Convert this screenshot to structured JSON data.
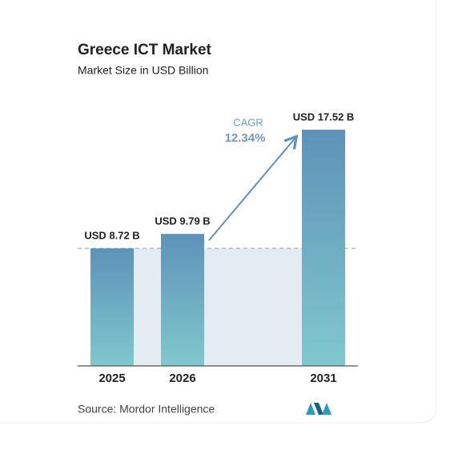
{
  "chart_data": {
    "type": "bar",
    "title": "Greece ICT Market",
    "subtitle": "Market Size in USD Billion",
    "categories": [
      "2025",
      "2026",
      "2031"
    ],
    "values": [
      8.72,
      9.79,
      17.52
    ],
    "value_labels": [
      "USD 8.72 B",
      "USD 9.79 B",
      "USD 17.52 B"
    ],
    "color": "#5e92b9",
    "annotations": [
      "CAGR",
      "12.34%"
    ],
    "source": "Source:  Mordor Intelligence"
  }
}
